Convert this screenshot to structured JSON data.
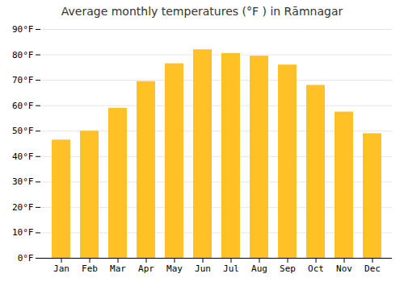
{
  "chart_data": {
    "type": "bar",
    "title": "Average monthly temperatures (°F ) in Rāmnagar",
    "categories": [
      "Jan",
      "Feb",
      "Mar",
      "Apr",
      "May",
      "Jun",
      "Jul",
      "Aug",
      "Sep",
      "Oct",
      "Nov",
      "Dec"
    ],
    "values": [
      46.5,
      50.0,
      59.0,
      69.5,
      76.5,
      82.0,
      80.5,
      79.5,
      76.0,
      68.0,
      57.5,
      49.0
    ],
    "color": "#FFC125",
    "ylim": [
      0,
      90
    ],
    "yticks": [
      {
        "value": 0,
        "label": "0°F"
      },
      {
        "value": 10,
        "label": "10°F"
      },
      {
        "value": 20,
        "label": "20°F"
      },
      {
        "value": 30,
        "label": "30°F"
      },
      {
        "value": 40,
        "label": "40°F"
      },
      {
        "value": 50,
        "label": "50°F"
      },
      {
        "value": 60,
        "label": "60°F"
      },
      {
        "value": 70,
        "label": "70°F"
      },
      {
        "value": 80,
        "label": "80°F"
      },
      {
        "value": 90,
        "label": "90°F"
      }
    ],
    "grid": true
  }
}
